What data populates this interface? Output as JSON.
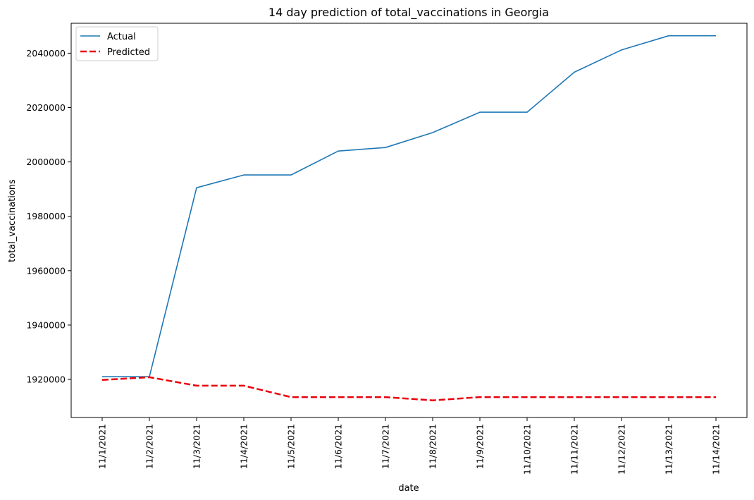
{
  "chart_data": {
    "type": "line",
    "title": "14 day prediction of total_vaccinations in Georgia",
    "xlabel": "date",
    "ylabel": "total_vaccinations",
    "categories": [
      "11/1/2021",
      "11/2/2021",
      "11/3/2021",
      "11/4/2021",
      "11/5/2021",
      "11/6/2021",
      "11/7/2021",
      "11/8/2021",
      "11/9/2021",
      "11/10/2021",
      "11/11/2021",
      "11/12/2021",
      "11/13/2021",
      "11/14/2021"
    ],
    "ylim": [
      1906000,
      2051000
    ],
    "yticks": [
      1920000,
      1940000,
      1960000,
      1980000,
      2000000,
      2020000,
      2040000
    ],
    "grid": false,
    "legend_position": "top-left",
    "series": [
      {
        "name": "Actual",
        "color": "#1f77b4",
        "style": "solid",
        "values": [
          1921000,
          1921000,
          1990500,
          1995200,
          1995200,
          2004000,
          2005300,
          2010800,
          2018300,
          2018300,
          2033000,
          2041200,
          2046400,
          2046400
        ]
      },
      {
        "name": "Predicted",
        "color": "#e8000b",
        "style": "dashed",
        "values": [
          1919800,
          1920800,
          1917700,
          1917700,
          1913500,
          1913500,
          1913500,
          1912300,
          1913500,
          1913500,
          1913500,
          1913500,
          1913500,
          1913500
        ]
      }
    ]
  }
}
